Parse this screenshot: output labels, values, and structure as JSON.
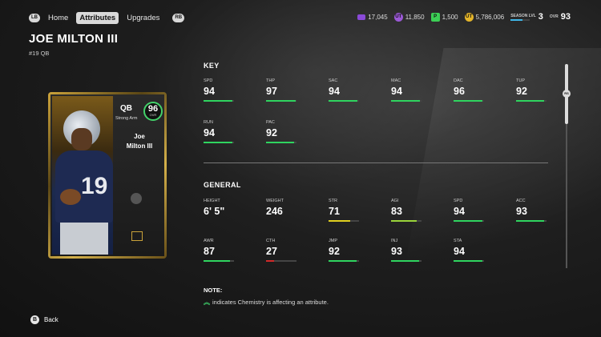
{
  "nav": {
    "lb": "LB",
    "rb": "RB",
    "tabs": [
      {
        "label": "Home",
        "active": false
      },
      {
        "label": "Attributes",
        "active": true
      },
      {
        "label": "Upgrades",
        "active": false
      }
    ]
  },
  "currencies": {
    "c1": "17,045",
    "c2": "11,850",
    "c3": "1,500",
    "c4": "5,786,006",
    "season_label": "SEASON LVL",
    "season_level": "3",
    "ovr_label": "OVR",
    "ovr_value": "93",
    "c2_icon": "UT",
    "c3_icon": "P",
    "c4_icon": "UT"
  },
  "player": {
    "name": "JOE MILTON III",
    "number_pos": "#19 QB",
    "card": {
      "position": "QB",
      "archetype": "Strong Arm",
      "ovr": "96",
      "ovr_label": "OVR",
      "first_name": "Joe",
      "last_name": "Milton III",
      "jersey_number": "19"
    }
  },
  "key": {
    "title": "KEY",
    "stats": [
      {
        "label": "SPD",
        "value": "94",
        "fill": 0.94,
        "color": "#2fd45f"
      },
      {
        "label": "THP",
        "value": "97",
        "fill": 0.97,
        "color": "#2fd45f"
      },
      {
        "label": "SAC",
        "value": "94",
        "fill": 0.94,
        "color": "#2fd45f"
      },
      {
        "label": "MAC",
        "value": "94",
        "fill": 0.94,
        "color": "#2fd45f"
      },
      {
        "label": "DAC",
        "value": "96",
        "fill": 0.96,
        "color": "#2fd45f"
      },
      {
        "label": "TUP",
        "value": "92",
        "fill": 0.92,
        "color": "#2fd45f"
      },
      {
        "label": "RUN",
        "value": "94",
        "fill": 0.94,
        "color": "#2fd45f"
      },
      {
        "label": "PAC",
        "value": "92",
        "fill": 0.92,
        "color": "#2fd45f"
      }
    ]
  },
  "general": {
    "title": "GENERAL",
    "stats": [
      {
        "label": "HEIGHT",
        "value": "6' 5\"",
        "fill": null,
        "color": null
      },
      {
        "label": "WEIGHT",
        "value": "246",
        "fill": null,
        "color": null
      },
      {
        "label": "STR",
        "value": "71",
        "fill": 0.71,
        "color": "#e0d020"
      },
      {
        "label": "AGI",
        "value": "83",
        "fill": 0.83,
        "color": "#9ad43a"
      },
      {
        "label": "SPD",
        "value": "94",
        "fill": 0.94,
        "color": "#2fd45f"
      },
      {
        "label": "ACC",
        "value": "93",
        "fill": 0.93,
        "color": "#2fd45f"
      },
      {
        "label": "AWR",
        "value": "87",
        "fill": 0.87,
        "color": "#2fd45f"
      },
      {
        "label": "CTH",
        "value": "27",
        "fill": 0.27,
        "color": "#d12a2a"
      },
      {
        "label": "JMP",
        "value": "92",
        "fill": 0.92,
        "color": "#2fd45f"
      },
      {
        "label": "INJ",
        "value": "93",
        "fill": 0.93,
        "color": "#2fd45f"
      },
      {
        "label": "STA",
        "value": "94",
        "fill": 0.94,
        "color": "#2fd45f"
      }
    ]
  },
  "scroll": {
    "button": "RS"
  },
  "note": {
    "title": "NOTE:",
    "text": "indicates Chemistry is affecting an attribute."
  },
  "footer": {
    "button": "B",
    "label": "Back"
  }
}
